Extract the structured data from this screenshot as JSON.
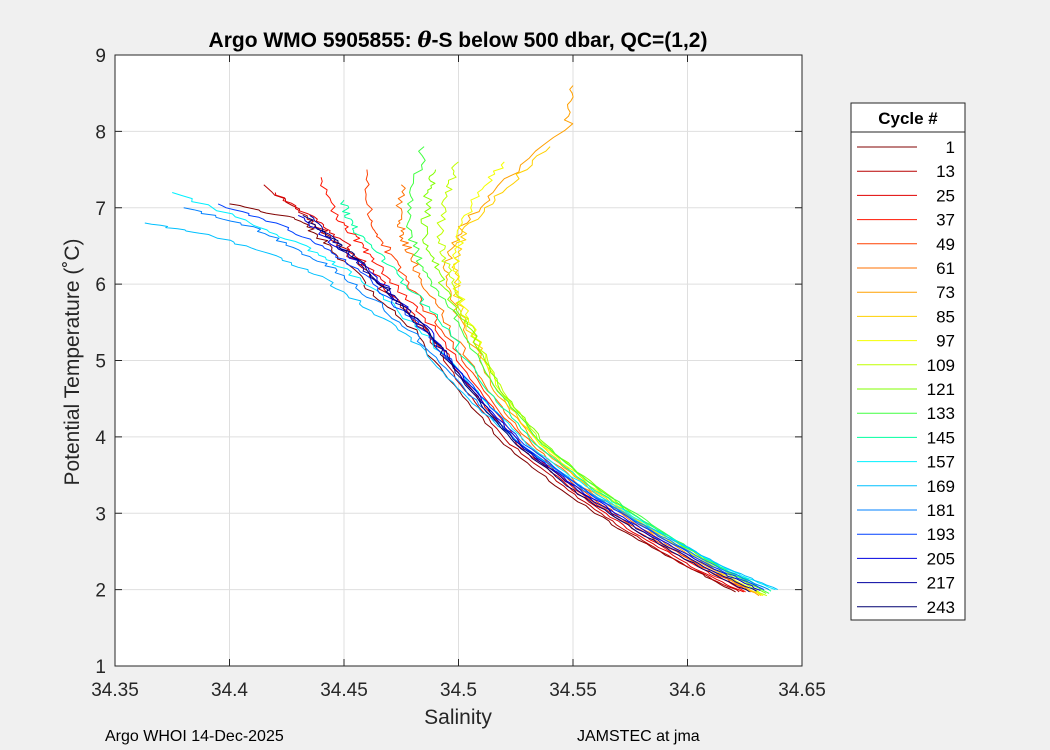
{
  "figure": {
    "background_color": "#f0f0f0",
    "axes_background": "#ffffff",
    "footer_left": "Argo WHOI 14-Dec-2025",
    "footer_right": "JAMSTEC at jma"
  },
  "chart_data": {
    "type": "line",
    "title_prefix": "Argo WMO 5905855: ",
    "title_theta": "θ",
    "title_suffix": "-S below 500 dbar,  QC=(1,2)",
    "xlabel": "Salinity",
    "ylabel": "Potential Temperature (˚C)",
    "xlim": [
      34.35,
      34.65
    ],
    "ylim": [
      1,
      9
    ],
    "xticks": [
      34.35,
      34.4,
      34.45,
      34.5,
      34.55,
      34.6,
      34.65
    ],
    "xtick_labels": [
      "34.35",
      "34.4",
      "34.45",
      "34.5",
      "34.55",
      "34.6",
      "34.65"
    ],
    "yticks": [
      1,
      2,
      3,
      4,
      5,
      6,
      7,
      8,
      9
    ],
    "ytick_labels": [
      "1",
      "2",
      "3",
      "4",
      "5",
      "6",
      "7",
      "8",
      "9"
    ],
    "grid": true,
    "legend": {
      "title": "Cycle #",
      "placement": "outside-right",
      "entries": [
        {
          "label": "1",
          "color": "#800000"
        },
        {
          "label": "13",
          "color": "#b80000"
        },
        {
          "label": "25",
          "color": "#e00000"
        },
        {
          "label": "37",
          "color": "#ff1400"
        },
        {
          "label": "49",
          "color": "#ff4000"
        },
        {
          "label": "61",
          "color": "#ff7000"
        },
        {
          "label": "73",
          "color": "#ffa000"
        },
        {
          "label": "85",
          "color": "#ffd000"
        },
        {
          "label": "97",
          "color": "#f4ff00"
        },
        {
          "label": "109",
          "color": "#c0ff00"
        },
        {
          "label": "121",
          "color": "#80ff00"
        },
        {
          "label": "133",
          "color": "#40ff40"
        },
        {
          "label": "145",
          "color": "#00ffa0"
        },
        {
          "label": "157",
          "color": "#00f0ff"
        },
        {
          "label": "169",
          "color": "#00c0ff"
        },
        {
          "label": "181",
          "color": "#0080ff"
        },
        {
          "label": "193",
          "color": "#0040ff"
        },
        {
          "label": "205",
          "color": "#0000e0"
        },
        {
          "label": "217",
          "color": "#0000a0"
        },
        {
          "label": "243",
          "color": "#000070"
        }
      ]
    },
    "series": [
      {
        "name": "1",
        "color": "#800000",
        "x": [
          34.621,
          34.6,
          34.57,
          34.545,
          34.52,
          34.5,
          34.48,
          34.462,
          34.45,
          34.44,
          34.43,
          34.4
        ],
        "y": [
          1.97,
          2.3,
          2.8,
          3.3,
          3.9,
          4.6,
          5.4,
          5.9,
          6.3,
          6.6,
          6.85,
          7.05
        ]
      },
      {
        "name": "13",
        "color": "#b80000",
        "x": [
          34.623,
          34.6,
          34.572,
          34.548,
          34.523,
          34.503,
          34.484,
          34.468,
          34.455,
          34.445,
          34.435,
          34.415
        ],
        "y": [
          1.97,
          2.3,
          2.8,
          3.3,
          3.9,
          4.6,
          5.4,
          5.9,
          6.3,
          6.6,
          6.85,
          7.3
        ]
      },
      {
        "name": "25",
        "color": "#e00000",
        "x": [
          34.624,
          34.602,
          34.574,
          34.55,
          34.526,
          34.506,
          34.486,
          34.47,
          34.458,
          34.448,
          34.438,
          34.42
        ],
        "y": [
          1.97,
          2.3,
          2.8,
          3.3,
          3.9,
          4.6,
          5.4,
          5.9,
          6.3,
          6.6,
          6.85,
          7.2
        ]
      },
      {
        "name": "37",
        "color": "#ff1400",
        "x": [
          34.626,
          34.604,
          34.576,
          34.552,
          34.528,
          34.509,
          34.49,
          34.475,
          34.464,
          34.455,
          34.447,
          34.44
        ],
        "y": [
          1.97,
          2.3,
          2.8,
          3.3,
          3.9,
          4.6,
          5.4,
          5.9,
          6.3,
          6.6,
          6.85,
          7.4
        ]
      },
      {
        "name": "49",
        "color": "#ff4000",
        "x": [
          34.628,
          34.606,
          34.578,
          34.554,
          34.53,
          34.511,
          34.493,
          34.48,
          34.472,
          34.466,
          34.462,
          34.46
        ],
        "y": [
          1.97,
          2.3,
          2.8,
          3.3,
          3.9,
          4.6,
          5.4,
          5.9,
          6.3,
          6.6,
          6.85,
          7.5
        ]
      },
      {
        "name": "61",
        "color": "#ff7000",
        "x": [
          34.629,
          34.607,
          34.58,
          34.556,
          34.532,
          34.513,
          34.497,
          34.487,
          34.48,
          34.476,
          34.474,
          34.475
        ],
        "y": [
          1.97,
          2.3,
          2.8,
          3.3,
          3.9,
          4.6,
          5.4,
          5.9,
          6.3,
          6.6,
          6.85,
          7.3
        ]
      },
      {
        "name": "73",
        "color": "#ffa000",
        "x": [
          34.631,
          34.609,
          34.582,
          34.558,
          34.534,
          34.516,
          34.503,
          34.496,
          34.495,
          34.5,
          34.515,
          34.548,
          34.55
        ],
        "y": [
          1.92,
          2.3,
          2.8,
          3.3,
          3.9,
          4.6,
          5.4,
          5.9,
          6.3,
          6.7,
          7.2,
          8.1,
          8.6
        ]
      },
      {
        "name": "85",
        "color": "#ffd000",
        "x": [
          34.632,
          34.61,
          34.583,
          34.559,
          34.535,
          34.517,
          34.505,
          34.499,
          34.498,
          34.503,
          34.518,
          34.54
        ],
        "y": [
          1.92,
          2.3,
          2.8,
          3.3,
          3.9,
          4.6,
          5.4,
          5.9,
          6.3,
          6.7,
          7.2,
          7.8
        ]
      },
      {
        "name": "97",
        "color": "#f4ff00",
        "x": [
          34.633,
          34.611,
          34.584,
          34.56,
          34.536,
          34.518,
          34.506,
          34.5,
          34.499,
          34.501,
          34.508,
          34.52
        ],
        "y": [
          1.92,
          2.3,
          2.8,
          3.3,
          3.9,
          4.6,
          5.4,
          5.9,
          6.3,
          6.7,
          7.2,
          7.6
        ]
      },
      {
        "name": "109",
        "color": "#c0ff00",
        "x": [
          34.634,
          34.612,
          34.585,
          34.561,
          34.537,
          34.519,
          34.506,
          34.498,
          34.494,
          34.492,
          34.495,
          34.5
        ],
        "y": [
          1.92,
          2.3,
          2.8,
          3.3,
          3.9,
          4.6,
          5.4,
          5.9,
          6.3,
          6.7,
          7.2,
          7.6
        ]
      },
      {
        "name": "121",
        "color": "#80ff00",
        "x": [
          34.635,
          34.613,
          34.586,
          34.562,
          34.538,
          34.519,
          34.505,
          34.495,
          34.489,
          34.485,
          34.487,
          34.49
        ],
        "y": [
          1.95,
          2.3,
          2.8,
          3.3,
          3.9,
          4.6,
          5.4,
          5.9,
          6.3,
          6.7,
          7.2,
          7.5
        ]
      },
      {
        "name": "133",
        "color": "#40ff40",
        "x": [
          34.636,
          34.614,
          34.587,
          34.562,
          34.537,
          34.517,
          34.502,
          34.491,
          34.483,
          34.478,
          34.48,
          34.485
        ],
        "y": [
          1.95,
          2.3,
          2.8,
          3.3,
          3.9,
          4.6,
          5.4,
          5.9,
          6.3,
          6.7,
          7.2,
          7.8
        ]
      },
      {
        "name": "145",
        "color": "#00ffa0",
        "x": [
          34.637,
          34.614,
          34.586,
          34.56,
          34.534,
          34.513,
          34.495,
          34.48,
          34.468,
          34.458,
          34.452,
          34.45
        ],
        "y": [
          1.98,
          2.3,
          2.8,
          3.3,
          3.9,
          4.6,
          5.4,
          5.9,
          6.3,
          6.6,
          6.85,
          7.1
        ]
      },
      {
        "name": "157",
        "color": "#00f0ff",
        "x": [
          34.638,
          34.615,
          34.585,
          34.558,
          34.53,
          34.508,
          34.487,
          34.468,
          34.45,
          34.432,
          34.41,
          34.375
        ],
        "y": [
          2.0,
          2.3,
          2.8,
          3.3,
          3.9,
          4.6,
          5.3,
          5.8,
          6.2,
          6.5,
          6.8,
          7.2
        ]
      },
      {
        "name": "169",
        "color": "#00c0ff",
        "x": [
          34.639,
          34.616,
          34.584,
          34.556,
          34.527,
          34.504,
          34.482,
          34.46,
          34.44,
          34.418,
          34.39,
          34.363
        ],
        "y": [
          2.0,
          2.3,
          2.8,
          3.3,
          3.9,
          4.5,
          5.2,
          5.7,
          6.1,
          6.4,
          6.65,
          6.8
        ]
      },
      {
        "name": "181",
        "color": "#0080ff",
        "x": [
          34.636,
          34.613,
          34.583,
          34.555,
          34.527,
          34.505,
          34.484,
          34.465,
          34.448,
          34.43,
          34.41,
          34.38
        ],
        "y": [
          2.0,
          2.3,
          2.8,
          3.3,
          3.9,
          4.55,
          5.25,
          5.75,
          6.15,
          6.45,
          6.75,
          7.0
        ]
      },
      {
        "name": "193",
        "color": "#0040ff",
        "x": [
          34.634,
          34.611,
          34.582,
          34.555,
          34.529,
          34.508,
          34.488,
          34.47,
          34.455,
          34.44,
          34.42,
          34.395
        ],
        "y": [
          2.0,
          2.3,
          2.8,
          3.3,
          3.9,
          4.6,
          5.3,
          5.8,
          6.2,
          6.5,
          6.8,
          7.05
        ]
      },
      {
        "name": "205",
        "color": "#0000e0",
        "x": [
          34.632,
          34.609,
          34.58,
          34.553,
          34.527,
          34.507,
          34.488,
          34.472,
          34.458,
          34.445,
          34.43
        ],
        "y": [
          1.99,
          2.3,
          2.8,
          3.3,
          3.9,
          4.6,
          5.35,
          5.85,
          6.25,
          6.55,
          6.9
        ]
      },
      {
        "name": "217",
        "color": "#0000a0",
        "x": [
          34.63,
          34.607,
          34.578,
          34.552,
          34.526,
          34.506,
          34.487,
          34.471,
          34.457,
          34.446,
          34.435
        ],
        "y": [
          1.98,
          2.3,
          2.8,
          3.3,
          3.9,
          4.6,
          5.35,
          5.85,
          6.25,
          6.55,
          6.9
        ]
      },
      {
        "name": "243",
        "color": "#000070",
        "x": [
          34.627,
          34.605,
          34.576,
          34.55,
          34.525,
          34.505,
          34.486,
          34.47,
          34.456,
          34.445,
          34.432
        ],
        "y": [
          1.97,
          2.3,
          2.8,
          3.3,
          3.9,
          4.6,
          5.4,
          5.9,
          6.3,
          6.6,
          6.9
        ]
      }
    ]
  }
}
